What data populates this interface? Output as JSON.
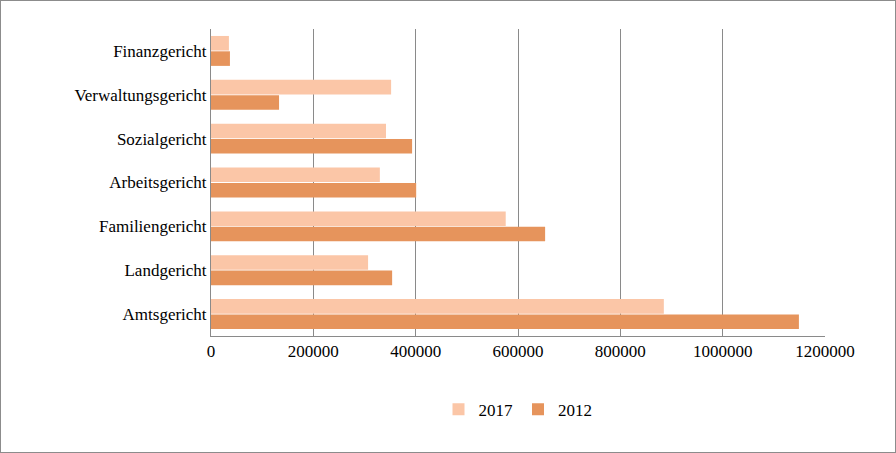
{
  "chart_data": {
    "type": "bar",
    "orientation": "horizontal",
    "grid": true,
    "legend": "bottom",
    "categories": [
      "Amtsgericht",
      "Landgericht",
      "Familiengericht",
      "Arbeitsgericht",
      "Sozialgericht",
      "Verwaltungsgericht",
      "Finanzgericht"
    ],
    "series": [
      {
        "name": "2017",
        "color": "#fbc6a7",
        "values": [
          885000,
          307000,
          576000,
          330000,
          342000,
          352000,
          35000
        ]
      },
      {
        "name": "2012",
        "color": "#e6945c",
        "values": [
          1149000,
          354000,
          653000,
          401000,
          393000,
          133000,
          37000
        ]
      }
    ],
    "xlim": [
      0,
      1200000
    ],
    "xticks": [
      0,
      200000,
      400000,
      600000,
      800000,
      1000000,
      1200000
    ]
  }
}
